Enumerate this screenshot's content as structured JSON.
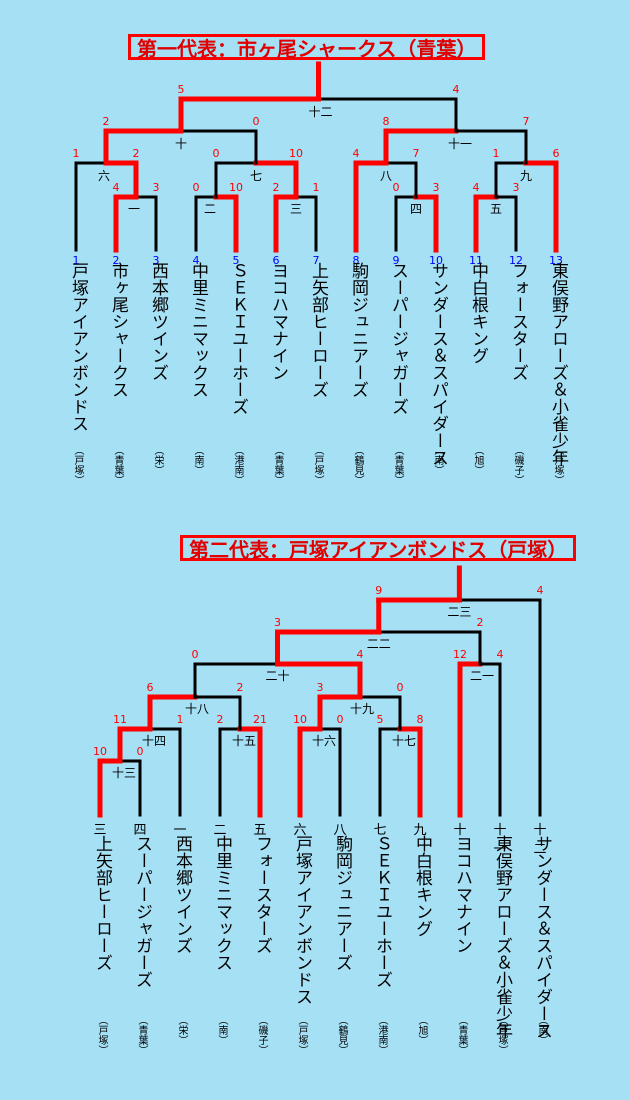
{
  "colors": {
    "background": "#a6e0f5",
    "win": "#ff0000",
    "line": "#000000",
    "score": "#ff0000",
    "seed": "#0000ff"
  },
  "bracket1": {
    "title": "第一代表：市ヶ尾シャークス（青葉）",
    "seeds": [
      "1",
      "2",
      "3",
      "4",
      "5",
      "6",
      "7",
      "8",
      "9",
      "10",
      "11",
      "12",
      "13"
    ],
    "teams": [
      {
        "name": "戸塚アイアンボンドス",
        "area": "（戸塚）"
      },
      {
        "name": "市ヶ尾シャークス",
        "area": "（青葉）"
      },
      {
        "name": "西本郷ツインズ",
        "area": "（栄）"
      },
      {
        "name": "中里ミニマックス",
        "area": "（南）"
      },
      {
        "name": "ＳＥＫＩユーホーズ",
        "area": "（港南）"
      },
      {
        "name": "ヨコハマナイン",
        "area": "（青葉）"
      },
      {
        "name": "上矢部ヒーローズ",
        "area": "（戸塚）"
      },
      {
        "name": "駒岡ジュニアーズ",
        "area": "（鶴見）"
      },
      {
        "name": "スーパージャガーズ",
        "area": "（青葉）"
      },
      {
        "name": "サンダース＆スパイダース",
        "area": "（南）"
      },
      {
        "name": "中白根キング",
        "area": "（旭）"
      },
      {
        "name": "フォースターズ",
        "area": "（磯子）"
      },
      {
        "name": "東俣野アローズ＆小雀少年",
        "area": "（戸塚）"
      }
    ],
    "games": [
      {
        "label": "一",
        "l": "4",
        "r": "3"
      },
      {
        "label": "二",
        "l": "0",
        "r": "10"
      },
      {
        "label": "三",
        "l": "2",
        "r": "1"
      },
      {
        "label": "四",
        "l": "0",
        "r": "3"
      },
      {
        "label": "五",
        "l": "4",
        "r": "3"
      },
      {
        "label": "六",
        "l": "1",
        "r": "2"
      },
      {
        "label": "七",
        "l": "0",
        "r": "10"
      },
      {
        "label": "八",
        "l": "4",
        "r": "7"
      },
      {
        "label": "九",
        "l": "1",
        "r": "6"
      },
      {
        "label": "十",
        "l": "2",
        "r": "0"
      },
      {
        "label": "十一",
        "l": "8",
        "r": "7"
      },
      {
        "label": "十二",
        "l": "5",
        "r": "4"
      }
    ]
  },
  "bracket2": {
    "title": "第二代表：戸塚アイアンボンドス（戸塚）",
    "seeds": [
      "三",
      "四",
      "一",
      "二",
      "五",
      "六",
      "八",
      "七",
      "九",
      "十",
      "十一",
      "十二"
    ],
    "teams": [
      {
        "name": "上矢部ヒーローズ",
        "area": "（戸塚）"
      },
      {
        "name": "スーパージャガーズ",
        "area": "（青葉）"
      },
      {
        "name": "西本郷ツインズ",
        "area": "（栄）"
      },
      {
        "name": "中里ミニマックス",
        "area": "（南）"
      },
      {
        "name": "フォースターズ",
        "area": "（磯子）"
      },
      {
        "name": "戸塚アイアンボンドス",
        "area": "（戸塚）"
      },
      {
        "name": "駒岡ジュニアーズ",
        "area": "（鶴見）"
      },
      {
        "name": "ＳＥＫＩユーホーズ",
        "area": "（港南）"
      },
      {
        "name": "中白根キング",
        "area": "（旭）"
      },
      {
        "name": "ヨコハマナイン",
        "area": "（青葉）"
      },
      {
        "name": "東俣野アローズ＆小雀少年",
        "area": "（戸塚）"
      },
      {
        "name": "サンダース＆スパイダース",
        "area": "（南）"
      }
    ],
    "games": [
      {
        "label": "十三",
        "l": "10",
        "r": "0"
      },
      {
        "label": "十四",
        "l": "11",
        "r": "1"
      },
      {
        "label": "十五",
        "l": "2",
        "r": "21"
      },
      {
        "label": "十六",
        "l": "10",
        "r": "0"
      },
      {
        "label": "十七",
        "l": "5",
        "r": "8"
      },
      {
        "label": "十八",
        "l": "6",
        "r": "2"
      },
      {
        "label": "十九",
        "l": "3",
        "r": "0"
      },
      {
        "label": "二十",
        "l": "0",
        "r": "4"
      },
      {
        "label": "二一",
        "l": "12",
        "r": "4"
      },
      {
        "label": "二二",
        "l": "3",
        "r": "2"
      },
      {
        "label": "二三",
        "l": "9",
        "r": "4"
      }
    ]
  }
}
